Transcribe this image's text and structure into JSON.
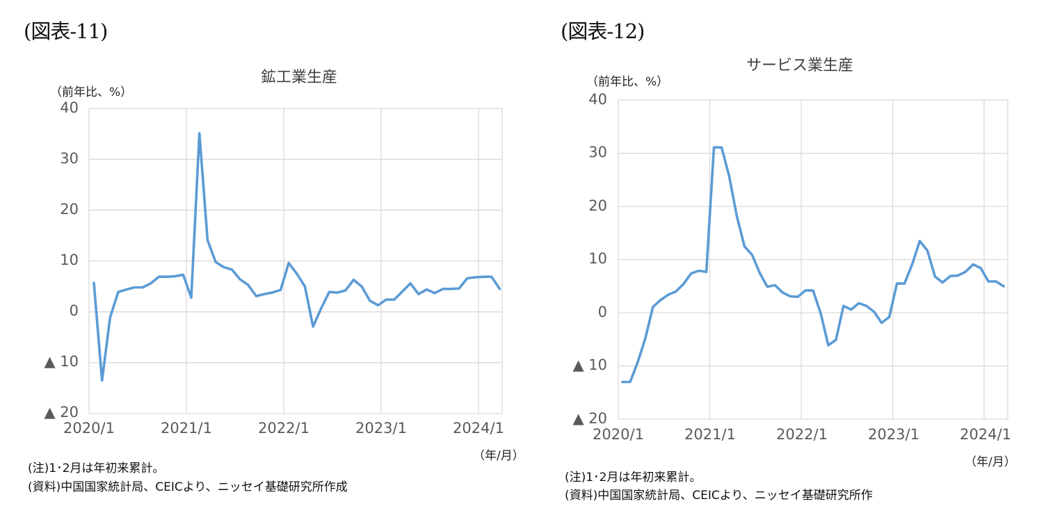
{
  "figures": [
    {
      "label": "(図表-11)",
      "title": "鉱工業生産",
      "unit": "（前年比、%）",
      "x_unit": "（年/月）",
      "note": "(注)1･2月は年初来累計。",
      "source": "(資料)中国国家統計局、CEICより、ニッセイ基礎研究所作成"
    },
    {
      "label": "(図表-12)",
      "title": "サービス業生産",
      "unit": "（前年比、%）",
      "x_unit": "（年/月）",
      "note": "(注)1･2月は年初来累計。",
      "source": "(資料)中国国家統計局、CEICより、ニッセイ基礎研究所作"
    }
  ],
  "colors": {
    "line": "#5B9BD5",
    "grid": "#D9D9D9",
    "tick_text": "#595959"
  },
  "chart_data": [
    {
      "type": "line",
      "title": "鉱工業生産",
      "xlabel": "（年/月）",
      "ylabel": "（前年比、%）",
      "ylim": [
        -20,
        40
      ],
      "yticks": [
        "40",
        "30",
        "20",
        "10",
        "0",
        "▲ 10",
        "▲ 20"
      ],
      "ytick_values": [
        40,
        30,
        20,
        10,
        0,
        -10,
        -20
      ],
      "xtick_labels": [
        "2020/1",
        "2021/1",
        "2022/1",
        "2023/1",
        "2024/1"
      ],
      "grid": true,
      "legend": "none",
      "series": [
        {
          "name": "鉱工業生産（前年比、%）",
          "values": [
            5.7,
            -13.5,
            -1.1,
            3.9,
            4.4,
            4.8,
            4.8,
            5.6,
            6.9,
            6.9,
            7.0,
            7.3,
            2.8,
            35.1,
            14.1,
            9.8,
            8.8,
            8.3,
            6.4,
            5.3,
            3.1,
            3.5,
            3.8,
            4.3,
            9.6,
            7.5,
            5.0,
            -2.9,
            0.7,
            3.9,
            3.8,
            4.2,
            6.3,
            5.0,
            2.2,
            1.3,
            2.4,
            2.4,
            4.0,
            5.6,
            3.5,
            4.4,
            3.7,
            4.5,
            4.5,
            4.6,
            6.6,
            6.8,
            6.9,
            6.9,
            4.5
          ]
        }
      ]
    },
    {
      "type": "line",
      "title": "サービス業生産",
      "xlabel": "（年/月）",
      "ylabel": "（前年比、%）",
      "ylim": [
        -20,
        40
      ],
      "yticks": [
        "40",
        "30",
        "20",
        "10",
        "0",
        "▲ 10",
        "▲ 20"
      ],
      "ytick_values": [
        40,
        30,
        20,
        10,
        0,
        -10,
        -20
      ],
      "xtick_labels": [
        "2020/1",
        "2021/1",
        "2022/1",
        "2023/1",
        "2024/1"
      ],
      "grid": true,
      "legend": "none",
      "series": [
        {
          "name": "サービス業生産（前年比、%）",
          "values": [
            -13.0,
            -13.0,
            -9.3,
            -4.8,
            1.1,
            2.4,
            3.4,
            4.0,
            5.4,
            7.4,
            7.9,
            7.7,
            31.1,
            31.1,
            25.7,
            18.2,
            12.5,
            10.9,
            7.5,
            4.9,
            5.2,
            3.8,
            3.1,
            3.0,
            4.2,
            4.2,
            -0.1,
            -6.1,
            -5.1,
            1.3,
            0.6,
            1.8,
            1.3,
            0.2,
            -1.9,
            -0.8,
            5.5,
            5.5,
            9.1,
            13.5,
            11.7,
            6.8,
            5.7,
            6.9,
            7.0,
            7.7,
            9.1,
            8.4,
            5.9,
            5.9,
            5.0
          ]
        }
      ]
    }
  ]
}
